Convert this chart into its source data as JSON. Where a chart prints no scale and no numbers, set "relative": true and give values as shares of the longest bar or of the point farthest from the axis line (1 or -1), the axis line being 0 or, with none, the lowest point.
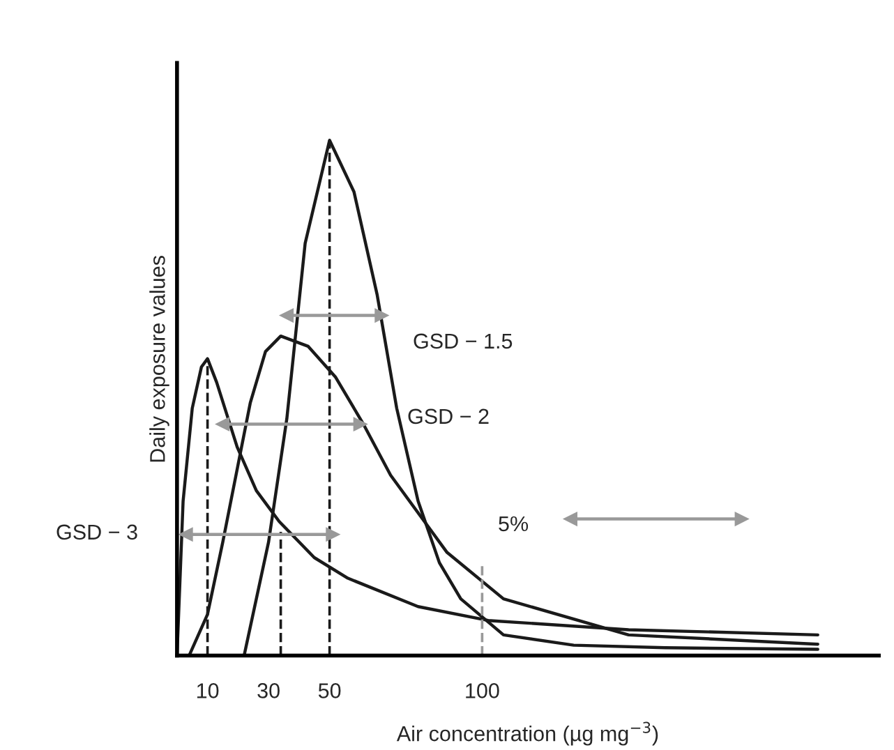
{
  "chart_data": {
    "type": "line",
    "relative": true,
    "xlabel": "Air concentration (µg mg$^{−3}$)",
    "ylabel": "Daily exposure values",
    "xlim": [
      0,
      230
    ],
    "xticks": [
      10,
      30,
      50,
      100
    ],
    "grid": false,
    "legend": false,
    "marker": "none",
    "line_style": "solid",
    "series": [
      {
        "color": "#1a1a1a",
        "x": [
          22,
          30,
          36,
          42,
          50,
          58,
          65.6,
          72,
          79,
          86,
          93,
          107,
          130,
          160,
          210
        ],
        "values": [
          0,
          0.22,
          0.46,
          0.8,
          1.0,
          0.9,
          0.7,
          0.48,
          0.3,
          0.18,
          0.11,
          0.04,
          0.02,
          0.015,
          0.012
        ]
      },
      {
        "color": "#1a1a1a",
        "x": [
          0,
          2,
          5,
          8,
          10,
          13,
          19.7,
          26,
          33.5,
          45,
          56,
          79,
          102,
          148,
          210
        ],
        "values": [
          0,
          0.3,
          0.48,
          0.56,
          0.576,
          0.53,
          0.405,
          0.32,
          0.26,
          0.19,
          0.15,
          0.095,
          0.068,
          0.05,
          0.04
        ]
      },
      {
        "color": "#1a1a1a",
        "x": [
          4,
          10,
          15,
          20,
          24,
          29,
          34,
          43,
          52,
          61,
          70,
          88.5,
          107,
          148,
          210
        ],
        "values": [
          0,
          0.08,
          0.22,
          0.37,
          0.49,
          0.59,
          0.62,
          0.6,
          0.54,
          0.45,
          0.35,
          0.2,
          0.11,
          0.04,
          0.022
        ]
      },
      {
        "color": "#1a1a1a",
        "line_style": "dashed",
        "x": [
          10,
          10
        ],
        "values": [
          0,
          0.576
        ]
      },
      {
        "color": "#1a1a1a",
        "line_style": "dashed",
        "x": [
          34,
          34
        ],
        "values": [
          0,
          0.24
        ]
      },
      {
        "color": "#1a1a1a",
        "line_style": "dashed",
        "x": [
          50,
          50
        ],
        "values": [
          0,
          1.0
        ]
      },
      {
        "color": "#999999",
        "line_style": "dashed",
        "x": [
          100,
          100
        ],
        "values": [
          0,
          0.176
        ]
      },
      {
        "color": "#999999",
        "marker": "triangle",
        "x": [
          36,
          67
        ],
        "values": [
          0.66,
          0.66
        ]
      },
      {
        "color": "#999999",
        "marker": "triangle",
        "x": [
          15,
          60
        ],
        "values": [
          0.449,
          0.449
        ]
      },
      {
        "color": "#999999",
        "marker": "triangle",
        "x": [
          3,
          51
        ],
        "values": [
          0.235,
          0.235
        ]
      },
      {
        "color": "#999999",
        "marker": "triangle",
        "x": [
          129,
          185
        ],
        "values": [
          0.265,
          0.265
        ]
      }
    ],
    "annotations": [
      "GSD − 1.5",
      "GSD − 2",
      "GSD − 3",
      "5%"
    ]
  }
}
